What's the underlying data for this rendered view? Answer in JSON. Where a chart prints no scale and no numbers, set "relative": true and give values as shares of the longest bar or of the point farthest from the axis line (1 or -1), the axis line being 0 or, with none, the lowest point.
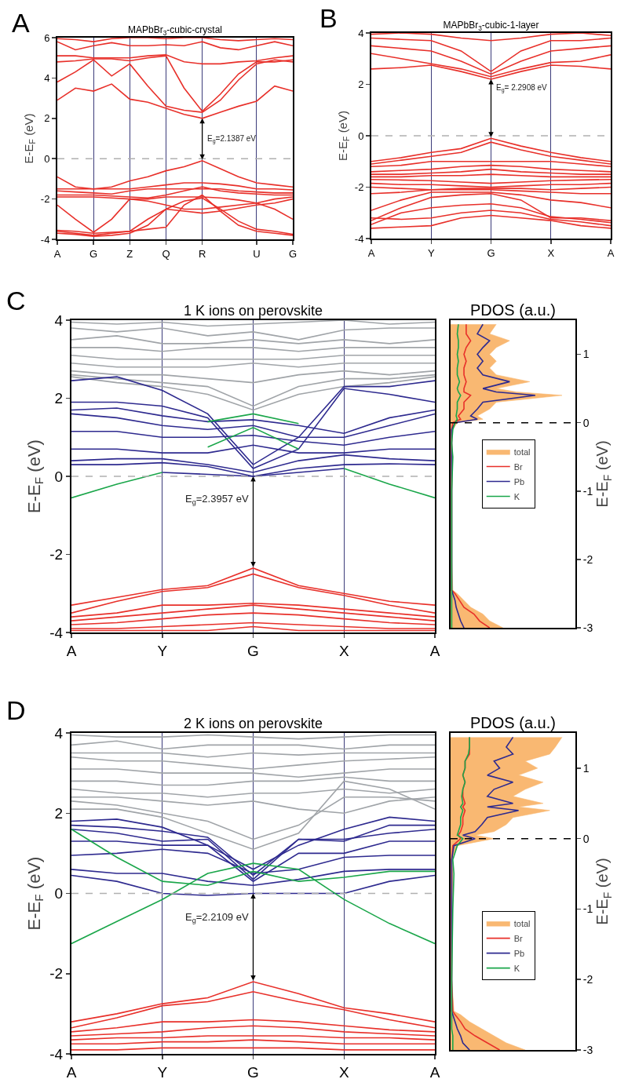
{
  "chart_data": [
    {
      "type": "line",
      "title": "MAPbBr$_{3}$-cubic-crystal",
      "ylabel": "E-E$_{F}$ (eV)",
      "annotations": [
        "A",
        {
          "text": "E$_{g}$=2.1387 eV",
          "x": "R",
          "y": 2.0
        }
      ],
      "categories": [
        "A",
        null,
        "G",
        null,
        "Z",
        null,
        "Q",
        null,
        "R",
        null,
        null,
        "U",
        null,
        "G"
      ],
      "ylim": [
        -4,
        6
      ],
      "yticks": [
        -4,
        -2,
        0,
        2,
        4,
        6
      ],
      "grid": "x",
      "legend": false,
      "marker": "none",
      "line_style": "solid",
      "ref_lines": [
        {
          "axis": "y",
          "value": 0,
          "color": "#b0b0b0",
          "line_style": "dashed"
        }
      ],
      "series": [
        {
          "color": "#e8302a",
          "values": [
            2.9,
            3.5,
            3.35,
            3.7,
            2.95,
            2.8,
            2.5,
            2.2,
            2.0,
            2.3,
            2.6,
            2.85,
            3.6,
            3.35
          ]
        },
        {
          "color": "#e8302a",
          "values": [
            3.8,
            4.3,
            4.9,
            4.1,
            4.7,
            3.6,
            2.6,
            2.4,
            2.3,
            2.9,
            3.9,
            4.7,
            4.9,
            4.8
          ]
        },
        {
          "color": "#e8302a",
          "values": [
            4.8,
            4.85,
            4.95,
            4.95,
            4.85,
            5.0,
            5.1,
            3.5,
            2.35,
            3.2,
            4.2,
            4.8,
            4.8,
            4.9
          ]
        },
        {
          "color": "#e8302a",
          "values": [
            5.1,
            5.1,
            5.0,
            5.0,
            5.0,
            5.1,
            5.15,
            4.8,
            4.7,
            4.7,
            4.8,
            4.85,
            5.0,
            5.1
          ]
        },
        {
          "color": "#e8302a",
          "values": [
            5.8,
            5.4,
            5.6,
            5.75,
            5.6,
            5.6,
            5.65,
            5.6,
            5.8,
            5.5,
            5.4,
            5.6,
            5.8,
            5.6
          ]
        },
        {
          "color": "#e8302a",
          "values": [
            5.95,
            5.9,
            5.8,
            5.95,
            6.0,
            6.0,
            5.95,
            6.0,
            6.0,
            5.9,
            5.85,
            5.9,
            5.95,
            5.9
          ]
        },
        {
          "color": "#e8302a",
          "values": [
            -0.9,
            -1.4,
            -1.5,
            -1.4,
            -1.1,
            -0.9,
            -0.6,
            -0.4,
            -0.1,
            -0.5,
            -0.9,
            -1.2,
            -1.3,
            -1.4
          ]
        },
        {
          "color": "#e8302a",
          "values": [
            -1.5,
            -1.5,
            -1.5,
            -1.5,
            -1.5,
            -1.4,
            -1.3,
            -1.2,
            -1.2,
            -1.25,
            -1.35,
            -1.5,
            -1.5,
            -1.55
          ]
        },
        {
          "color": "#e8302a",
          "values": [
            -1.6,
            -1.65,
            -1.7,
            -1.75,
            -1.6,
            -1.5,
            -1.5,
            -1.5,
            -1.5,
            -1.5,
            -1.6,
            -1.65,
            -1.7,
            -1.7
          ]
        },
        {
          "color": "#e8302a",
          "values": [
            -1.8,
            -1.8,
            -1.8,
            -1.85,
            -1.9,
            -1.95,
            -1.8,
            -1.6,
            -1.4,
            -1.6,
            -1.7,
            -1.75,
            -1.8,
            -1.8
          ]
        },
        {
          "color": "#e8302a",
          "values": [
            -1.9,
            -1.9,
            -1.9,
            -1.95,
            -2.0,
            -2.0,
            -1.9,
            -1.9,
            -1.9,
            -1.95,
            -2.05,
            -2.2,
            -2.0,
            -1.9
          ]
        },
        {
          "color": "#e8302a",
          "values": [
            -2.3,
            -3.0,
            -3.65,
            -3.0,
            -2.0,
            -2.1,
            -2.3,
            -2.5,
            -2.5,
            -2.4,
            -2.3,
            -2.2,
            -2.5,
            -3.0
          ]
        },
        {
          "color": "#e8302a",
          "values": [
            -3.55,
            -3.6,
            -3.7,
            -3.65,
            -3.6,
            -3.0,
            -2.5,
            -2.6,
            -2.7,
            -2.6,
            -2.45,
            -2.3,
            -2.2,
            -2.0
          ]
        },
        {
          "color": "#e8302a",
          "values": [
            -3.6,
            -3.7,
            -3.8,
            -3.7,
            -3.6,
            -3.5,
            -3.4,
            -2.3,
            -1.8,
            -2.6,
            -3.3,
            -3.6,
            -3.7,
            -3.8
          ]
        },
        {
          "color": "#e8302a",
          "values": [
            -3.7,
            -3.75,
            -3.85,
            -3.8,
            -3.7,
            -3.3,
            -2.5,
            -2.1,
            -1.95,
            -2.5,
            -3.1,
            -3.5,
            -3.6,
            -3.75
          ]
        }
      ]
    },
    {
      "type": "line",
      "title": "MAPbBr$_{3}$-cubic-1-layer",
      "ylabel": "E-E$_{F}$ (eV)",
      "annotations": [
        "B",
        {
          "text": "E$_{g}$= 2.2908 eV",
          "x": "G",
          "y": 2.2
        }
      ],
      "categories": [
        "A",
        null,
        "Y",
        null,
        "G",
        null,
        "X",
        null,
        "A"
      ],
      "ylim": [
        -4,
        4
      ],
      "yticks": [
        -4,
        -2,
        0,
        2,
        4
      ],
      "grid": "x",
      "legend": false,
      "marker": "none",
      "line_style": "solid",
      "ref_lines": [
        {
          "axis": "y",
          "value": 0,
          "color": "#b0b0b0",
          "line_style": "dashed"
        }
      ],
      "series": [
        {
          "color": "#e8302a",
          "values": [
            2.6,
            2.65,
            2.75,
            2.5,
            2.2,
            2.5,
            2.75,
            2.7,
            2.6
          ]
        },
        {
          "color": "#e8302a",
          "values": [
            3.2,
            3.0,
            2.8,
            2.6,
            2.3,
            2.6,
            2.85,
            2.9,
            3.15
          ]
        },
        {
          "color": "#e8302a",
          "values": [
            3.5,
            3.4,
            3.3,
            2.9,
            2.4,
            2.9,
            3.3,
            3.4,
            3.5
          ]
        },
        {
          "color": "#e8302a",
          "values": [
            3.8,
            3.75,
            3.7,
            3.3,
            2.5,
            3.3,
            3.7,
            3.7,
            3.8
          ]
        },
        {
          "color": "#e8302a",
          "values": [
            3.95,
            4.0,
            3.95,
            3.8,
            3.7,
            3.8,
            3.95,
            4.0,
            3.9
          ]
        },
        {
          "color": "#e8302a",
          "values": [
            -1.0,
            -0.85,
            -0.65,
            -0.5,
            -0.1,
            -0.4,
            -0.65,
            -0.85,
            -1.0
          ]
        },
        {
          "color": "#e8302a",
          "values": [
            -1.1,
            -0.95,
            -0.8,
            -0.65,
            -0.25,
            -0.55,
            -0.8,
            -0.95,
            -1.1
          ]
        },
        {
          "color": "#e8302a",
          "values": [
            -1.2,
            -1.15,
            -1.0,
            -1.0,
            -1.0,
            -1.0,
            -1.0,
            -1.1,
            -1.2
          ]
        },
        {
          "color": "#e8302a",
          "values": [
            -1.4,
            -1.35,
            -1.3,
            -1.2,
            -1.15,
            -1.2,
            -1.3,
            -1.35,
            -1.4
          ]
        },
        {
          "color": "#e8302a",
          "values": [
            -1.5,
            -1.5,
            -1.45,
            -1.4,
            -1.3,
            -1.4,
            -1.45,
            -1.5,
            -1.5
          ]
        },
        {
          "color": "#e8302a",
          "values": [
            -1.6,
            -1.6,
            -1.55,
            -1.55,
            -1.5,
            -1.55,
            -1.6,
            -1.6,
            -1.6
          ]
        },
        {
          "color": "#e8302a",
          "values": [
            -1.7,
            -1.72,
            -1.75,
            -1.8,
            -1.85,
            -1.8,
            -1.75,
            -1.72,
            -1.7
          ]
        },
        {
          "color": "#e8302a",
          "values": [
            -1.85,
            -1.9,
            -1.9,
            -1.95,
            -2.0,
            -1.95,
            -1.9,
            -1.9,
            -1.85
          ]
        },
        {
          "color": "#e8302a",
          "values": [
            -2.0,
            -2.05,
            -2.1,
            -2.05,
            -2.05,
            -2.05,
            -2.1,
            -2.05,
            -2.0
          ]
        },
        {
          "color": "#e8302a",
          "values": [
            -2.25,
            -2.2,
            -2.1,
            -2.1,
            -2.1,
            -2.15,
            -2.2,
            -2.25,
            -2.25
          ]
        },
        {
          "color": "#e8302a",
          "values": [
            -2.9,
            -2.5,
            -2.2,
            -2.2,
            -2.2,
            -2.3,
            -2.5,
            -2.6,
            -2.8
          ]
        },
        {
          "color": "#e8302a",
          "values": [
            -3.3,
            -2.8,
            -2.4,
            -2.3,
            -2.25,
            -2.5,
            -3.2,
            -3.2,
            -3.3
          ]
        },
        {
          "color": "#e8302a",
          "values": [
            -3.45,
            -3.0,
            -2.8,
            -2.7,
            -2.65,
            -2.8,
            -3.15,
            -3.25,
            -3.38
          ]
        },
        {
          "color": "#e8302a",
          "values": [
            -3.2,
            -3.25,
            -3.2,
            -3.0,
            -2.9,
            -3.0,
            -3.25,
            -3.35,
            -3.5
          ]
        },
        {
          "color": "#e8302a",
          "values": [
            -3.6,
            -3.55,
            -3.5,
            -3.2,
            -3.1,
            -3.2,
            -3.3,
            -3.5,
            -3.6
          ]
        }
      ]
    },
    {
      "type": "line",
      "title": "1 K ions on perovskite",
      "ylabel": "E-E$_{F}$ (eV)",
      "annotations": [
        "C",
        {
          "text": "E$_{g}$=2.3957 eV",
          "x": "G",
          "y": 0.0
        }
      ],
      "categories": [
        "A",
        null,
        "Y",
        null,
        "G",
        null,
        "X",
        null,
        "A"
      ],
      "ylim": [
        -4,
        4
      ],
      "yticks": [
        -4,
        -2,
        0,
        2,
        4
      ],
      "grid": "x",
      "legend": false,
      "marker": "none",
      "line_style": "solid",
      "ref_lines": [
        {
          "axis": "y",
          "value": 0,
          "color": "#b0b0b0",
          "line_style": "dashed"
        }
      ],
      "series": [
        {
          "color": "#a0a4a8",
          "values": [
            3.95,
            3.9,
            3.95,
            3.85,
            3.9,
            3.95,
            4.0,
            3.9,
            3.95
          ]
        },
        {
          "color": "#a0a4a8",
          "values": [
            3.8,
            3.7,
            3.8,
            3.6,
            3.7,
            3.5,
            3.75,
            3.8,
            3.8
          ]
        },
        {
          "color": "#a0a4a8",
          "values": [
            3.5,
            3.6,
            3.4,
            3.4,
            3.5,
            3.4,
            3.5,
            3.4,
            3.5
          ]
        },
        {
          "color": "#a0a4a8",
          "values": [
            3.3,
            3.3,
            3.2,
            3.3,
            3.3,
            3.2,
            3.3,
            3.3,
            3.3
          ]
        },
        {
          "color": "#a0a4a8",
          "values": [
            3.1,
            3.0,
            3.0,
            3.0,
            3.0,
            3.0,
            3.1,
            3.1,
            3.1
          ]
        },
        {
          "color": "#a0a4a8",
          "values": [
            2.9,
            2.8,
            2.8,
            2.8,
            2.9,
            2.8,
            2.9,
            2.9,
            2.9
          ]
        },
        {
          "color": "#a0a4a8",
          "values": [
            2.7,
            2.6,
            2.6,
            2.5,
            2.4,
            2.6,
            2.7,
            2.6,
            2.7
          ]
        },
        {
          "color": "#a0a4a8",
          "values": [
            2.6,
            2.5,
            2.4,
            2.3,
            1.8,
            2.3,
            2.5,
            2.5,
            2.6
          ]
        },
        {
          "color": "#a0a4a8",
          "values": [
            2.55,
            2.4,
            2.3,
            2.1,
            1.7,
            2.1,
            2.3,
            2.4,
            2.55
          ]
        },
        {
          "color": "#2e2a8f",
          "values": [
            2.45,
            2.55,
            2.2,
            1.6,
            0.3,
            1.0,
            2.3,
            2.3,
            2.45
          ]
        },
        {
          "color": "#2e2a8f",
          "values": [
            1.9,
            1.9,
            1.8,
            1.5,
            0.2,
            0.7,
            2.25,
            2.1,
            1.9
          ]
        },
        {
          "color": "#2e2a8f",
          "values": [
            1.7,
            1.75,
            1.55,
            1.4,
            1.45,
            1.3,
            1.1,
            1.5,
            1.7
          ]
        },
        {
          "color": "#2e2a8f",
          "values": [
            1.6,
            1.5,
            1.3,
            1.2,
            1.3,
            1.0,
            1.0,
            1.3,
            1.6
          ]
        },
        {
          "color": "#2e2a8f",
          "values": [
            1.15,
            1.15,
            1.0,
            1.0,
            1.05,
            0.9,
            0.8,
            1.0,
            1.15
          ]
        },
        {
          "color": "#2e2a8f",
          "values": [
            0.7,
            0.7,
            0.6,
            0.6,
            0.8,
            0.6,
            0.6,
            0.7,
            0.7
          ]
        },
        {
          "color": "#2e2a8f",
          "values": [
            0.4,
            0.45,
            0.45,
            0.3,
            0.1,
            0.4,
            0.55,
            0.45,
            0.4
          ]
        },
        {
          "color": "#2e2a8f",
          "values": [
            0.3,
            0.3,
            0.35,
            0.25,
            0.0,
            0.2,
            0.3,
            0.32,
            0.3
          ]
        },
        {
          "color": "#2e2a8f",
          "values": [
            null,
            null,
            0.1,
            0.05,
            0.0,
            0.1,
            0.2,
            null,
            null
          ]
        },
        {
          "color": "#1aa64a",
          "values": [
            -0.55,
            -0.2,
            0.1,
            null,
            null,
            null,
            0.2,
            -0.2,
            -0.55
          ]
        },
        {
          "color": "#1aa64a",
          "values": [
            null,
            null,
            null,
            1.4,
            1.6,
            1.35,
            null,
            null,
            null
          ]
        },
        {
          "color": "#1aa64a",
          "values": [
            null,
            null,
            null,
            0.75,
            1.25,
            0.7,
            null,
            null,
            null
          ]
        },
        {
          "color": "#e8302a",
          "values": [
            -3.3,
            -3.1,
            -2.9,
            -2.8,
            -2.35,
            -2.8,
            -3.0,
            -3.2,
            -3.3
          ]
        },
        {
          "color": "#e8302a",
          "values": [
            -3.5,
            -3.2,
            -2.95,
            -2.85,
            -2.5,
            -2.85,
            -3.05,
            -3.3,
            -3.5
          ]
        },
        {
          "color": "#e8302a",
          "values": [
            -3.6,
            -3.5,
            -3.3,
            -3.3,
            -3.25,
            -3.3,
            -3.4,
            -3.5,
            -3.6
          ]
        },
        {
          "color": "#e8302a",
          "values": [
            -3.7,
            -3.6,
            -3.5,
            -3.4,
            -3.3,
            -3.4,
            -3.5,
            -3.6,
            -3.7
          ]
        },
        {
          "color": "#e8302a",
          "values": [
            -3.8,
            -3.75,
            -3.65,
            -3.55,
            -3.5,
            -3.55,
            -3.65,
            -3.75,
            -3.8
          ]
        },
        {
          "color": "#e8302a",
          "values": [
            -3.9,
            -3.9,
            -3.85,
            -3.8,
            -3.75,
            -3.8,
            -3.85,
            -3.9,
            -3.9
          ]
        },
        {
          "color": "#e8302a",
          "values": [
            -3.95,
            -3.95,
            -3.95,
            -3.95,
            -3.85,
            -3.95,
            -3.95,
            -3.95,
            -3.95
          ]
        }
      ]
    },
    {
      "type": "line",
      "orientation": "horizontal",
      "relative": true,
      "title": "PDOS (a.u.)",
      "ylabel": "E-E$_{F}$ (eV)",
      "legend": "center",
      "tick_labels": "y",
      "marker": "none",
      "x": [
        -3,
        -2.9,
        -2.8,
        -2.7,
        -2.6,
        -2.5,
        -2.45,
        -2.0,
        -1.0,
        -0.5,
        -0.3,
        -0.1,
        0,
        0.05,
        0.1,
        0.2,
        0.3,
        0.4,
        0.45,
        0.5,
        0.6,
        0.7,
        0.8,
        0.9,
        1.0,
        1.1,
        1.2,
        1.3,
        1.44
      ],
      "ylim": [
        -3,
        1.5
      ],
      "yticks": [
        -3,
        -2,
        -1,
        0,
        1
      ],
      "ref_lines": [
        {
          "axis": "y",
          "value": 0,
          "color": "#000000",
          "line_style": "dashed"
        }
      ],
      "series": [
        {
          "name": "total",
          "type": "area",
          "color": "#f9b872",
          "values": [
            0.47,
            0.35,
            0.29,
            0.18,
            0.12,
            0.06,
            0.02,
            0.01,
            0.01,
            0.02,
            0.01,
            0.02,
            0.06,
            0.29,
            0.24,
            0.35,
            0.41,
            1,
            0.59,
            0.41,
            0.71,
            0.41,
            0.35,
            0.41,
            0.35,
            0.41,
            0.53,
            0.35,
            0.41
          ]
        },
        {
          "name": "Br",
          "color": "#e8302a",
          "values": [
            0.35,
            0.26,
            0.21,
            0.12,
            0.08,
            0.04,
            0.01,
            0.01,
            0.01,
            0.01,
            0.01,
            0.01,
            0.02,
            0.09,
            0.07,
            0.12,
            0.12,
            0.18,
            0.12,
            0.12,
            0.14,
            0.12,
            0.12,
            0.14,
            0.12,
            0.14,
            0.18,
            0.14,
            0.14
          ]
        },
        {
          "name": "Pb",
          "color": "#2e2a8f",
          "values": [
            0.12,
            0.09,
            0.07,
            0.05,
            0.04,
            0.02,
            0.01,
            0.01,
            0.01,
            0.01,
            0.01,
            0.01,
            0.04,
            0.24,
            0.18,
            0.24,
            0.29,
            0.76,
            0.41,
            0.29,
            0.53,
            0.29,
            0.24,
            0.29,
            0.24,
            0.29,
            0.35,
            0.24,
            0.29
          ]
        },
        {
          "name": "K",
          "color": "#1aa64a",
          "values": [
            0.01,
            0.01,
            0.01,
            0.01,
            0.01,
            0.01,
            0.01,
            0.01,
            0.01,
            0.02,
            0.01,
            0.02,
            0.04,
            0.06,
            0.05,
            0.06,
            0.06,
            0.09,
            0.07,
            0.06,
            0.08,
            0.06,
            0.06,
            0.07,
            0.06,
            0.07,
            0.07,
            0.06,
            0.07
          ]
        }
      ]
    },
    {
      "type": "line",
      "title": "2 K ions on perovskite",
      "ylabel": "E-E$_{F}$ (eV)",
      "annotations": [
        "D",
        {
          "text": "E$_{g}$=2.2109 eV",
          "x": "G",
          "y": 0.0
        }
      ],
      "categories": [
        "A",
        null,
        "Y",
        null,
        "G",
        null,
        "X",
        null,
        "A"
      ],
      "ylim": [
        -4,
        4
      ],
      "yticks": [
        -4,
        -2,
        0,
        2,
        4
      ],
      "grid": "x",
      "legend": false,
      "marker": "none",
      "line_style": "solid",
      "ref_lines": [
        {
          "axis": "y",
          "value": 0,
          "color": "#b0b0b0",
          "line_style": "dashed"
        }
      ],
      "series": [
        {
          "color": "#a0a4a8",
          "values": [
            3.95,
            3.9,
            3.9,
            3.95,
            3.9,
            3.85,
            3.9,
            3.95,
            3.95
          ]
        },
        {
          "color": "#a0a4a8",
          "values": [
            3.7,
            3.8,
            3.6,
            3.7,
            3.7,
            3.7,
            3.6,
            3.7,
            3.7
          ]
        },
        {
          "color": "#a0a4a8",
          "values": [
            3.5,
            3.5,
            3.5,
            3.4,
            3.5,
            3.45,
            3.5,
            3.5,
            3.5
          ]
        },
        {
          "color": "#a0a4a8",
          "values": [
            3.4,
            3.3,
            3.3,
            3.2,
            3.1,
            3.2,
            3.3,
            3.35,
            3.4
          ]
        },
        {
          "color": "#a0a4a8",
          "values": [
            3.1,
            3.1,
            3.0,
            3.0,
            3.0,
            2.9,
            3.0,
            3.1,
            3.1
          ]
        },
        {
          "color": "#a0a4a8",
          "values": [
            2.8,
            2.8,
            2.7,
            2.7,
            2.8,
            2.8,
            2.9,
            2.8,
            2.8
          ]
        },
        {
          "color": "#a0a4a8",
          "values": [
            2.6,
            2.5,
            2.5,
            2.4,
            2.5,
            2.5,
            2.6,
            2.5,
            2.6
          ]
        },
        {
          "color": "#a0a4a8",
          "values": [
            2.4,
            2.4,
            2.3,
            2.2,
            2.3,
            2.1,
            2.0,
            2.3,
            2.4
          ]
        },
        {
          "color": "#a0a4a8",
          "values": [
            2.3,
            2.2,
            2.0,
            1.8,
            1.35,
            1.7,
            2.4,
            2.4,
            2.3
          ]
        },
        {
          "color": "#a0a4a8",
          "values": [
            2.1,
            2.1,
            1.9,
            1.5,
            1.1,
            1.5,
            2.8,
            2.6,
            2.1
          ]
        },
        {
          "color": "#2e2a8f",
          "values": [
            1.8,
            1.85,
            1.65,
            1.2,
            0.6,
            1.2,
            1.6,
            1.9,
            1.8
          ]
        },
        {
          "color": "#2e2a8f",
          "values": [
            1.7,
            1.65,
            1.55,
            1.4,
            0.45,
            1.35,
            1.3,
            1.7,
            1.7
          ]
        },
        {
          "color": "#2e2a8f",
          "values": [
            1.6,
            1.5,
            1.3,
            1.35,
            0.35,
            1.35,
            1.35,
            1.5,
            1.6
          ]
        },
        {
          "color": "#2e2a8f",
          "values": [
            1.3,
            1.3,
            1.2,
            1.2,
            0.3,
            1.0,
            1.0,
            1.3,
            1.3
          ]
        },
        {
          "color": "#2e2a8f",
          "values": [
            0.95,
            1.0,
            1.1,
            1.0,
            0.5,
            0.6,
            0.9,
            0.95,
            0.95
          ]
        },
        {
          "color": "#2e2a8f",
          "values": [
            0.6,
            0.5,
            0.5,
            0.3,
            0.2,
            0.35,
            0.55,
            0.6,
            0.6
          ]
        },
        {
          "color": "#2e2a8f",
          "values": [
            0.45,
            0.3,
            0.0,
            -0.05,
            0.0,
            0.0,
            0.0,
            0.3,
            0.45
          ]
        },
        {
          "color": "#1aa64a",
          "values": [
            1.6,
            0.9,
            0.3,
            0.2,
            0.55,
            0.3,
            0.4,
            0.55,
            0.55
          ]
        },
        {
          "color": "#1aa64a",
          "values": [
            -1.25,
            -0.7,
            -0.15,
            0.5,
            0.75,
            0.6,
            -0.15,
            -0.75,
            -1.25
          ]
        },
        {
          "color": "#e8302a",
          "values": [
            -3.2,
            -3.0,
            -2.75,
            -2.6,
            -2.2,
            -2.5,
            -2.85,
            -3.0,
            -3.2
          ]
        },
        {
          "color": "#e8302a",
          "values": [
            -3.35,
            -3.1,
            -2.8,
            -2.7,
            -2.45,
            -2.7,
            -2.9,
            -3.15,
            -3.35
          ]
        },
        {
          "color": "#e8302a",
          "values": [
            -3.45,
            -3.35,
            -3.2,
            -3.2,
            -3.15,
            -3.2,
            -3.3,
            -3.4,
            -3.45
          ]
        },
        {
          "color": "#e8302a",
          "values": [
            -3.55,
            -3.5,
            -3.45,
            -3.35,
            -3.3,
            -3.35,
            -3.45,
            -3.5,
            -3.55
          ]
        },
        {
          "color": "#e8302a",
          "values": [
            -3.65,
            -3.6,
            -3.6,
            -3.55,
            -3.55,
            -3.55,
            -3.6,
            -3.6,
            -3.65
          ]
        },
        {
          "color": "#e8302a",
          "values": [
            -3.75,
            -3.75,
            -3.7,
            -3.7,
            -3.65,
            -3.7,
            -3.75,
            -3.75,
            -3.75
          ]
        },
        {
          "color": "#e8302a",
          "values": [
            -3.9,
            -3.9,
            -3.85,
            -3.85,
            -3.85,
            -3.85,
            -3.9,
            -3.9,
            -3.9
          ]
        }
      ]
    },
    {
      "type": "line",
      "orientation": "horizontal",
      "relative": true,
      "title": "PDOS (a.u.)",
      "ylabel": "E-E$_{F}$ (eV)",
      "legend": "bottom",
      "tick_labels": "y",
      "marker": "none",
      "x": [
        -3,
        -2.9,
        -2.8,
        -2.7,
        -2.6,
        -2.5,
        -2.45,
        -2.0,
        -1.0,
        -0.5,
        -0.3,
        -0.1,
        0,
        0.05,
        0.1,
        0.2,
        0.3,
        0.4,
        0.45,
        0.5,
        0.6,
        0.7,
        0.8,
        0.9,
        1.0,
        1.1,
        1.2,
        1.3,
        1.44
      ],
      "ylim": [
        -3,
        1.5
      ],
      "yticks": [
        -3,
        -2,
        -1,
        0,
        1
      ],
      "ref_lines": [
        {
          "axis": "y",
          "value": 0,
          "color": "#000000",
          "line_style": "dashed"
        }
      ],
      "series": [
        {
          "name": "total",
          "type": "area",
          "color": "#f9b872",
          "values": [
            0.67,
            0.5,
            0.39,
            0.28,
            0.17,
            0.09,
            0.03,
            0.01,
            0.01,
            0.02,
            0.01,
            0.06,
            0.39,
            0.22,
            0.39,
            0.5,
            0.56,
            0.89,
            0.61,
            0.83,
            0.56,
            0.67,
            0.83,
            0.61,
            0.78,
            0.67,
            0.89,
            0.94,
            1
          ]
        },
        {
          "name": "Br",
          "color": "#e8302a",
          "values": [
            0.44,
            0.33,
            0.22,
            0.13,
            0.09,
            0.04,
            0.02,
            0.01,
            0.01,
            0.01,
            0.01,
            0.02,
            0.09,
            0.07,
            0.09,
            0.11,
            0.11,
            0.13,
            0.11,
            0.13,
            0.11,
            0.11,
            0.13,
            0.11,
            0.13,
            0.13,
            0.17,
            0.17,
            0.17
          ]
        },
        {
          "name": "Pb",
          "color": "#2e2a8f",
          "values": [
            0.17,
            0.11,
            0.09,
            0.06,
            0.04,
            0.02,
            0.01,
            0.01,
            0.01,
            0.01,
            0.01,
            0.03,
            0.22,
            0.11,
            0.22,
            0.28,
            0.33,
            0.61,
            0.33,
            0.56,
            0.33,
            0.39,
            0.56,
            0.33,
            0.44,
            0.39,
            0.56,
            0.5,
            0.56
          ]
        },
        {
          "name": "K",
          "color": "#1aa64a",
          "values": [
            0.02,
            0.02,
            0.02,
            0.01,
            0.01,
            0.01,
            0.01,
            0.01,
            0.02,
            0.03,
            0.02,
            0.06,
            0.11,
            0.06,
            0.07,
            0.09,
            0.09,
            0.11,
            0.09,
            0.11,
            0.1,
            0.11,
            0.13,
            0.11,
            0.13,
            0.13,
            0.16,
            0.17,
            0.17
          ]
        }
      ]
    }
  ]
}
